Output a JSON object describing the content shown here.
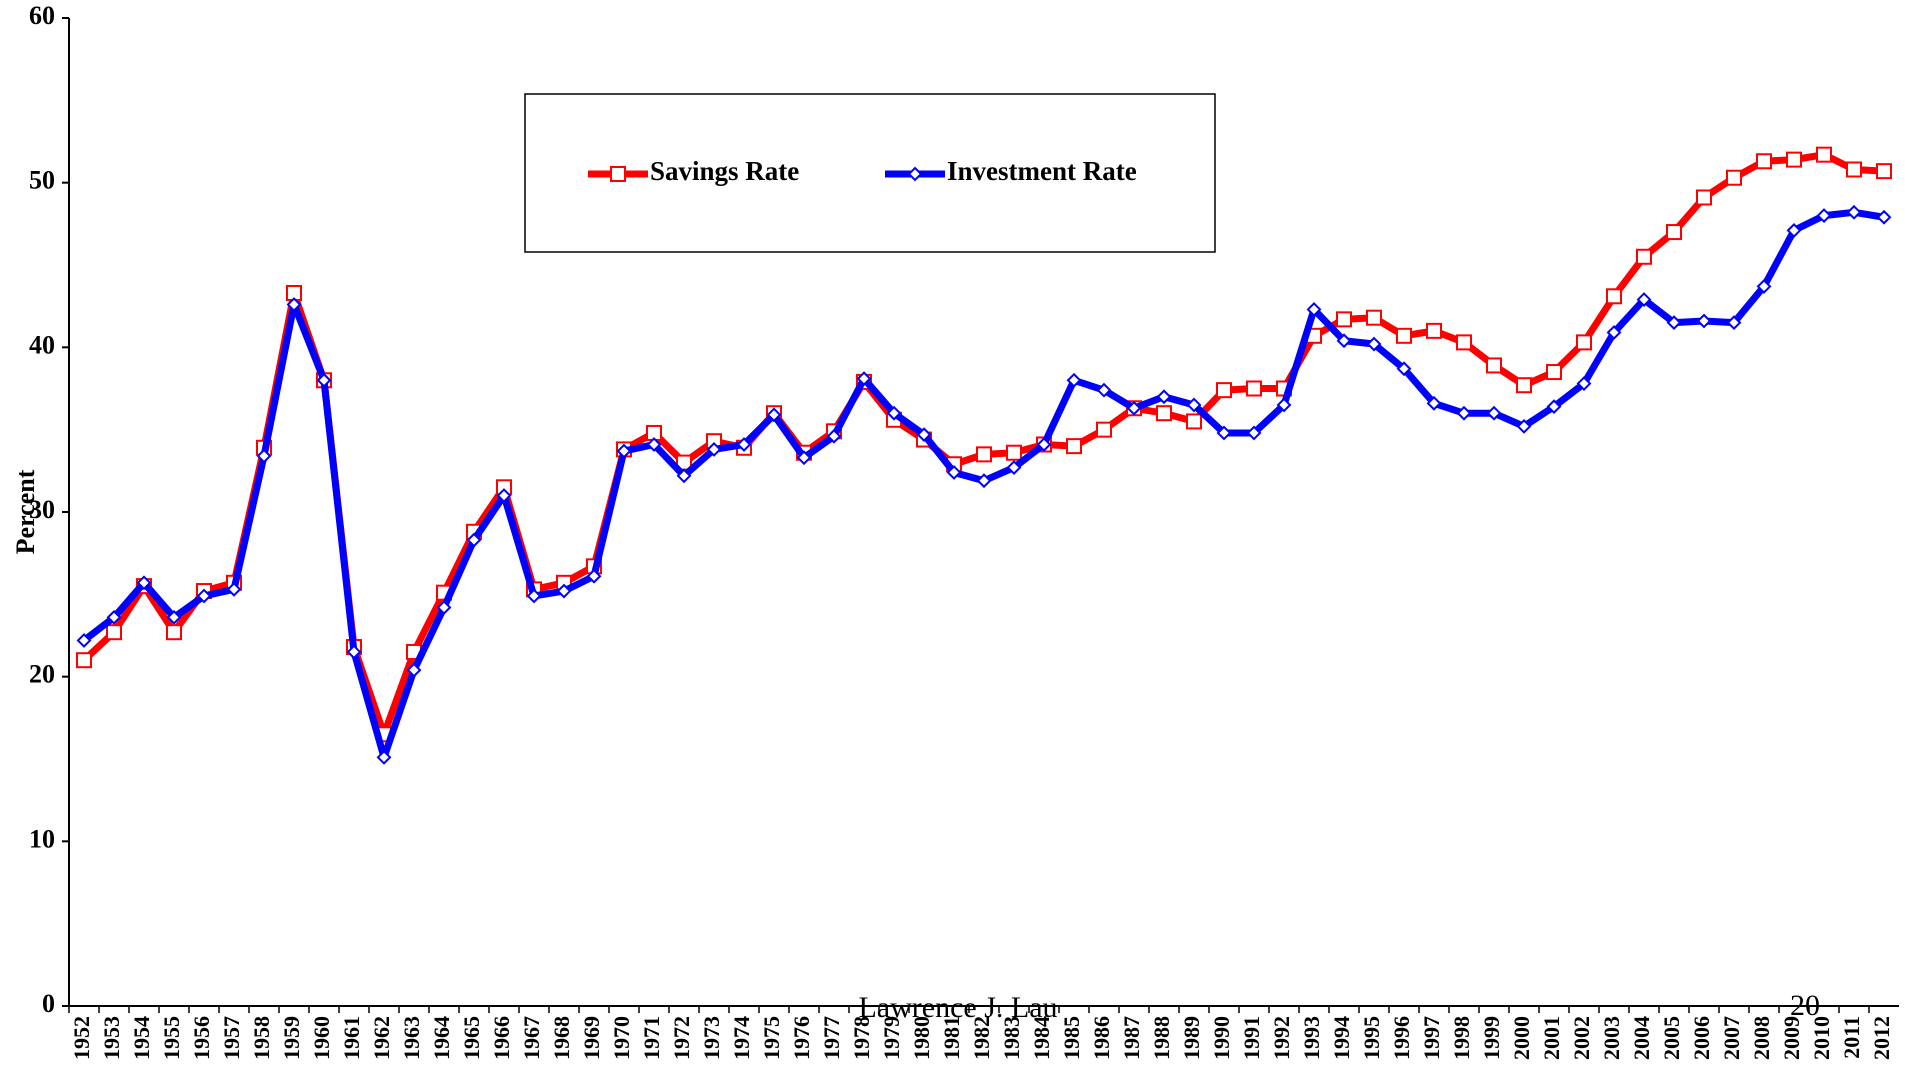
{
  "chart_data": {
    "type": "line",
    "y_label": "Percent",
    "annotations": [
      "Lawrence J. Lau",
      "20"
    ],
    "categories": [
      "1952",
      "1953",
      "1954",
      "1955",
      "1956",
      "1957",
      "1958",
      "1959",
      "1960",
      "1961",
      "1962",
      "1963",
      "1964",
      "1965",
      "1966",
      "1967",
      "1968",
      "1969",
      "1970",
      "1971",
      "1972",
      "1973",
      "1974",
      "1975",
      "1976",
      "1977",
      "1978",
      "1979",
      "1980",
      "1981",
      "1982",
      "1983",
      "1984",
      "1985",
      "1986",
      "1987",
      "1988",
      "1989",
      "1990",
      "1991",
      "1992",
      "1993",
      "1994",
      "1995",
      "1996",
      "1997",
      "1998",
      "1999",
      "2000",
      "2001",
      "2002",
      "2003",
      "2004",
      "2005",
      "2006",
      "2007",
      "2008",
      "2009",
      "2010",
      "2011",
      "2012"
    ],
    "series": [
      {
        "name": "Savings Rate",
        "color": "#ff0000",
        "marker": "square",
        "values": [
          21.0,
          22.7,
          25.5,
          22.7,
          25.2,
          25.7,
          33.9,
          43.3,
          38.0,
          21.8,
          16.5,
          21.5,
          25.1,
          28.8,
          31.5,
          25.3,
          25.7,
          26.7,
          33.8,
          34.8,
          33.0,
          34.3,
          33.9,
          36.0,
          33.6,
          34.9,
          37.9,
          35.6,
          34.4,
          32.9,
          33.5,
          33.6,
          34.1,
          34.0,
          35.0,
          36.3,
          36.0,
          35.5,
          37.4,
          37.5,
          37.5,
          40.7,
          41.7,
          41.8,
          40.7,
          41.0,
          40.3,
          38.9,
          37.7,
          38.5,
          40.3,
          43.1,
          45.5,
          47.0,
          49.1,
          50.3,
          51.3,
          51.4,
          51.7,
          50.8,
          50.7
        ]
      },
      {
        "name": "Investment Rate",
        "color": "#0000ff",
        "marker": "diamond",
        "values": [
          22.2,
          23.6,
          25.7,
          23.6,
          24.9,
          25.3,
          33.4,
          42.6,
          38.0,
          21.5,
          15.1,
          20.4,
          24.2,
          28.3,
          31.0,
          24.9,
          25.2,
          26.1,
          33.7,
          34.1,
          32.2,
          33.8,
          34.1,
          35.9,
          33.3,
          34.6,
          38.1,
          36.0,
          34.7,
          32.4,
          31.9,
          32.7,
          34.1,
          38.0,
          37.4,
          36.3,
          37.0,
          36.5,
          34.8,
          34.8,
          36.5,
          42.3,
          40.4,
          40.2,
          38.7,
          36.6,
          36.0,
          36.0,
          35.2,
          36.4,
          37.8,
          40.9,
          42.9,
          41.5,
          41.6,
          41.5,
          43.7,
          47.1,
          48.0,
          48.2,
          47.9
        ]
      }
    ],
    "ylim": [
      0,
      60
    ],
    "yticks": [
      0,
      10,
      20,
      30,
      40,
      50,
      60
    ]
  }
}
